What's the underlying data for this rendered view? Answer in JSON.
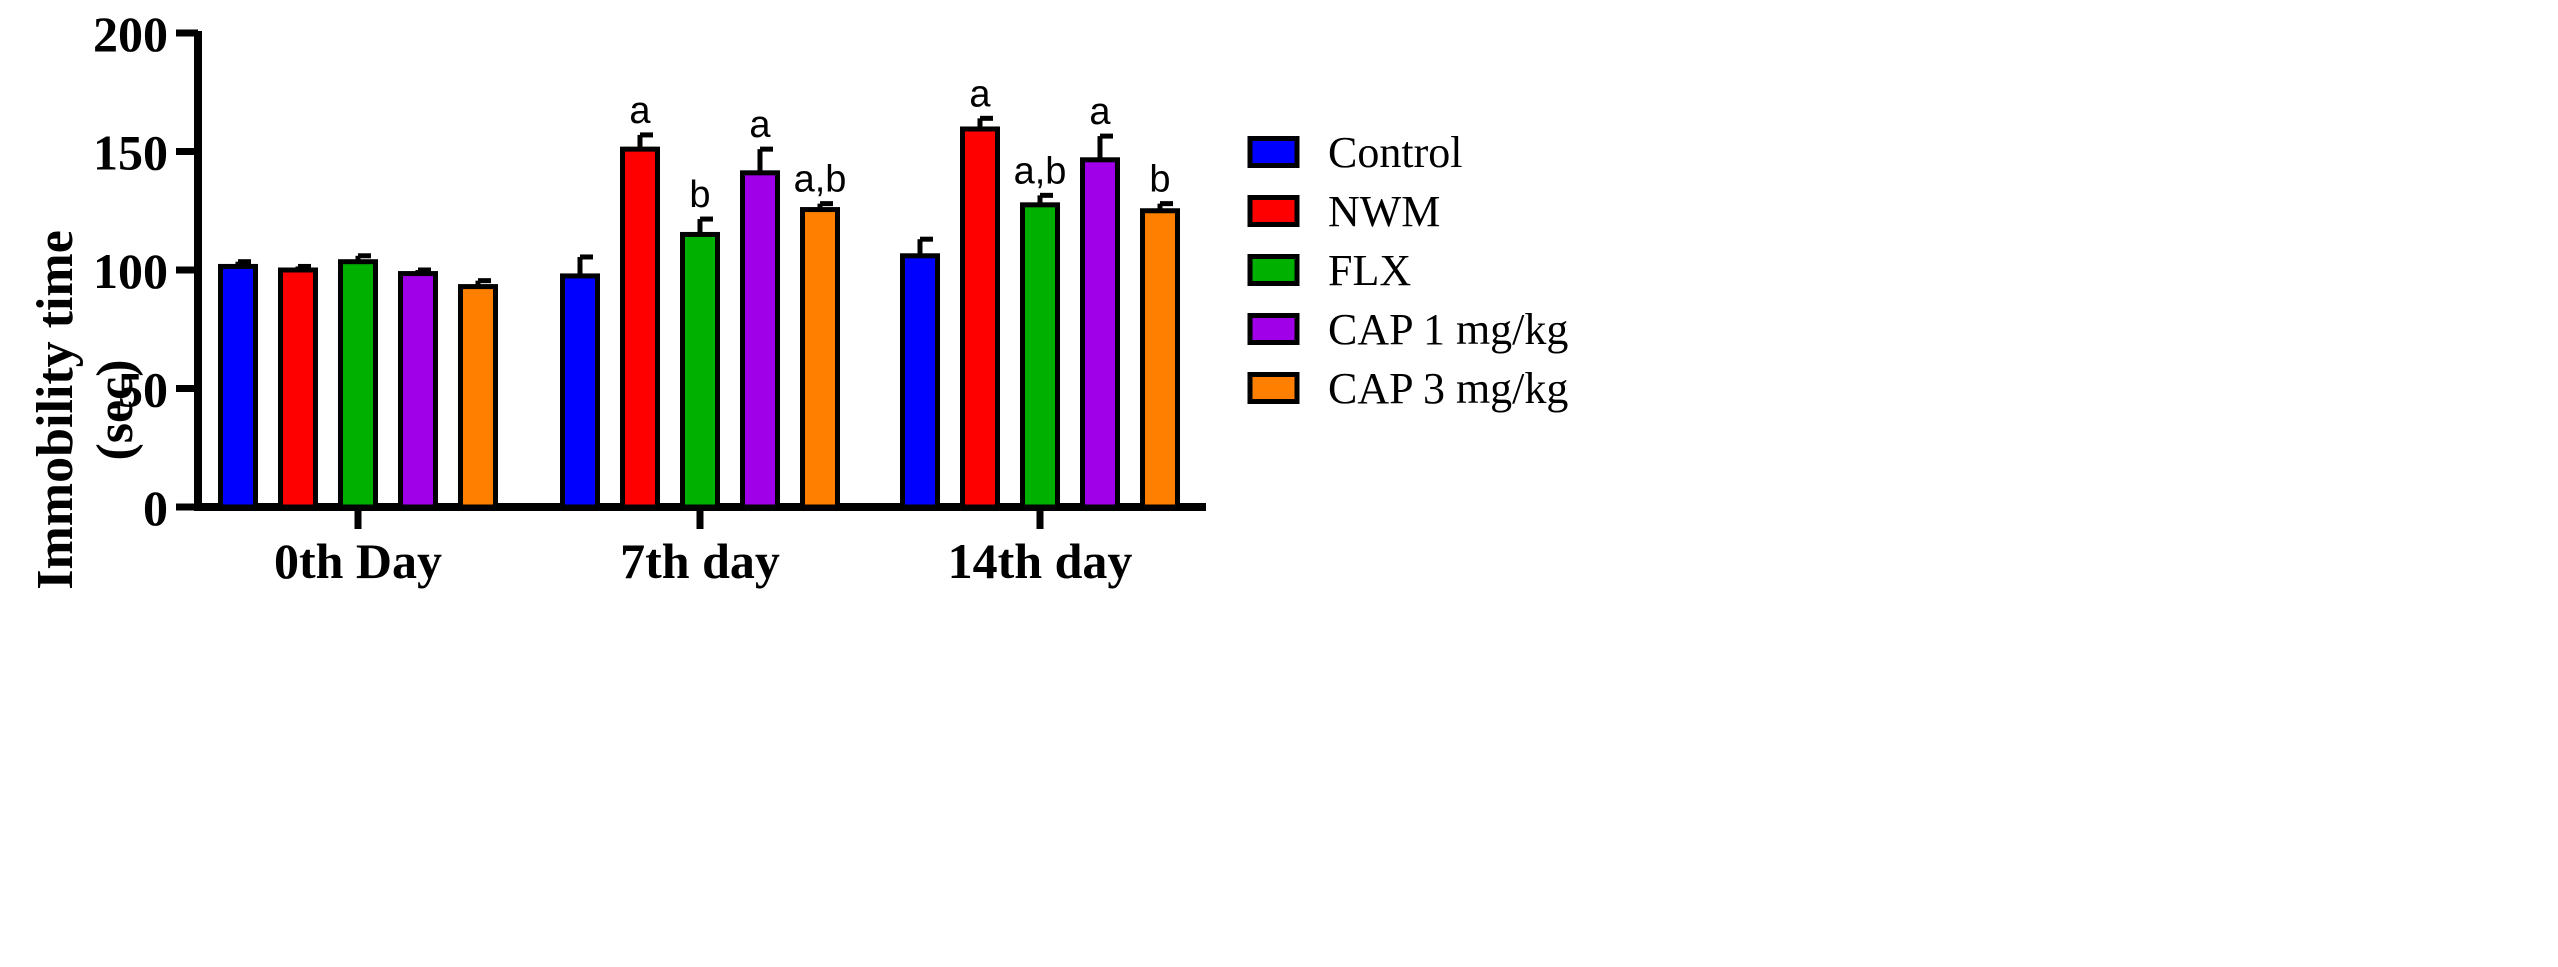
{
  "chart_data": {
    "type": "bar",
    "title": "",
    "xlabel": "",
    "ylabel": [
      "Immobility time",
      "(sec)"
    ],
    "ylim": [
      0,
      200
    ],
    "yticks": [
      0,
      50,
      100,
      150,
      200
    ],
    "categories": [
      "0th Day",
      "7th day",
      "14th day"
    ],
    "series": [
      {
        "name": "Control",
        "color": "#0000ff",
        "values": [
          101.5,
          97.5,
          106
        ],
        "errors": [
          2,
          8,
          7
        ],
        "labels": [
          "",
          "",
          ""
        ]
      },
      {
        "name": "NWM",
        "color": "#ff0000",
        "values": [
          100,
          151,
          159.5
        ],
        "errors": [
          1.5,
          6,
          4.5
        ],
        "labels": [
          "",
          "a",
          "a"
        ]
      },
      {
        "name": "FLX",
        "color": "#00b000",
        "values": [
          103.5,
          115,
          127.5
        ],
        "errors": [
          2.5,
          6.5,
          4
        ],
        "labels": [
          "",
          "b",
          "a,b"
        ]
      },
      {
        "name": "CAP 1 mg/kg",
        "color": "#a000e8",
        "values": [
          98.5,
          141,
          146.5
        ],
        "errors": [
          1.5,
          10,
          10
        ],
        "labels": [
          "",
          "a",
          "a"
        ]
      },
      {
        "name": "CAP 3 mg/kg",
        "color": "#ff8000",
        "values": [
          93,
          125.5,
          125
        ],
        "errors": [
          2.5,
          2.5,
          3
        ],
        "labels": [
          "",
          "a,b",
          "b"
        ]
      }
    ],
    "legend": "right"
  }
}
